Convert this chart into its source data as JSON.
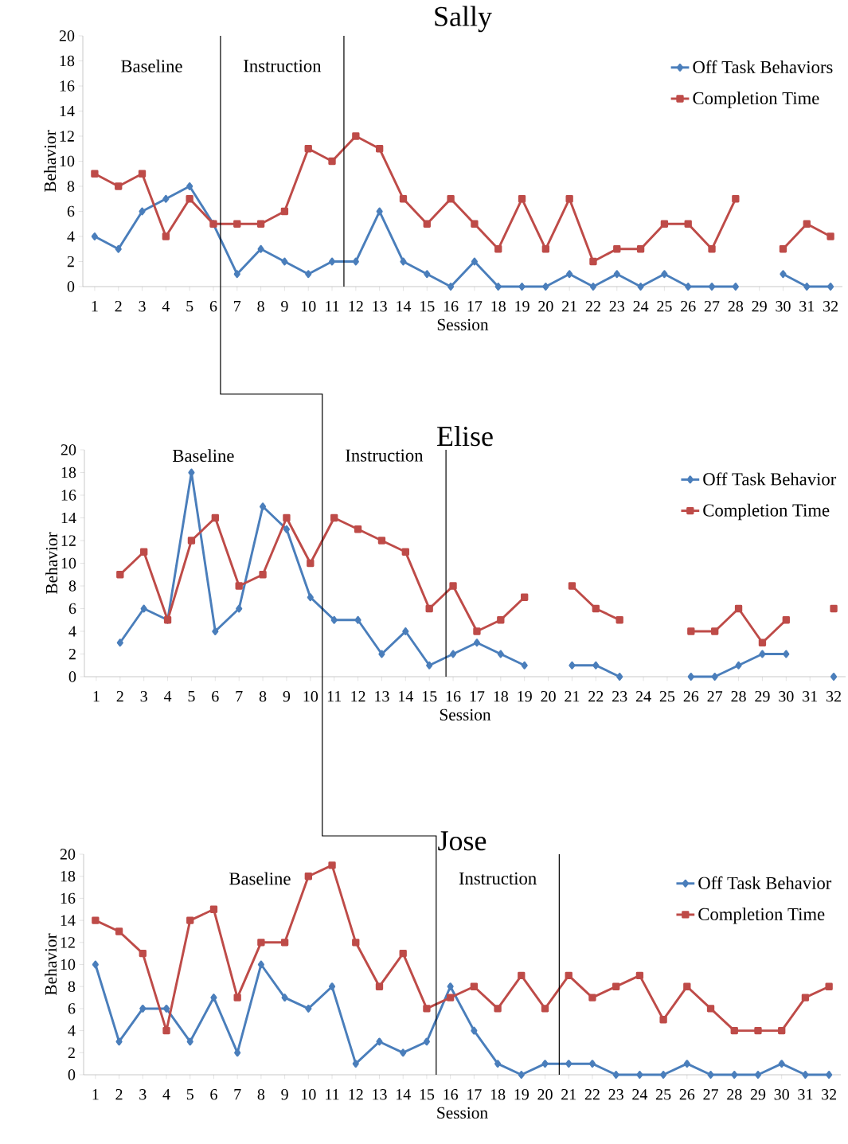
{
  "chart_data": [
    {
      "type": "line",
      "title": "Sally",
      "xlabel": "Session",
      "ylabel": "Behavior",
      "x": [
        1,
        2,
        3,
        4,
        5,
        6,
        7,
        8,
        9,
        10,
        11,
        12,
        13,
        14,
        15,
        16,
        17,
        18,
        19,
        20,
        21,
        22,
        23,
        24,
        25,
        26,
        27,
        28,
        29,
        30,
        31,
        32
      ],
      "xlim": [
        0.5,
        32.5
      ],
      "xticks": [
        1,
        2,
        3,
        4,
        5,
        6,
        7,
        8,
        9,
        10,
        11,
        12,
        13,
        14,
        15,
        16,
        17,
        18,
        19,
        20,
        21,
        22,
        23,
        24,
        25,
        26,
        27,
        28,
        29,
        30,
        31,
        32
      ],
      "ylim": [
        0,
        20
      ],
      "yticks": [
        0,
        2,
        4,
        6,
        8,
        10,
        12,
        14,
        16,
        18,
        20
      ],
      "legend": "top right",
      "series": [
        {
          "name": "Off Task Behaviors",
          "color": "#4a7ebb",
          "marker": "diamond",
          "values": [
            4,
            3,
            6,
            7,
            8,
            5,
            1,
            3,
            2,
            1,
            2,
            2,
            6,
            2,
            1,
            0,
            2,
            0,
            0,
            0,
            1,
            0,
            1,
            0,
            1,
            0,
            0,
            0,
            null,
            1,
            0,
            0
          ]
        },
        {
          "name": "Completion Time",
          "color": "#be4b48",
          "marker": "square",
          "values": [
            9,
            8,
            9,
            4,
            7,
            5,
            5,
            5,
            6,
            11,
            10,
            12,
            11,
            7,
            5,
            7,
            5,
            3,
            7,
            3,
            7,
            2,
            3,
            3,
            5,
            5,
            3,
            7,
            null,
            3,
            5,
            4
          ]
        }
      ],
      "ref_lines": [
        {
          "axis": "x",
          "value": 6.3,
          "color": "#000000"
        },
        {
          "axis": "x",
          "value": 11.5,
          "color": "#000000"
        }
      ],
      "annotations": [
        "Baseline",
        "Instruction"
      ]
    },
    {
      "type": "line",
      "title": "Elise",
      "xlabel": "Session",
      "ylabel": "Behavior",
      "xlim": [
        0.5,
        32.5
      ],
      "xticks": [
        1,
        2,
        3,
        4,
        5,
        6,
        7,
        8,
        9,
        10,
        11,
        12,
        13,
        14,
        15,
        16,
        17,
        18,
        19,
        20,
        21,
        22,
        23,
        24,
        25,
        26,
        27,
        28,
        29,
        30,
        31,
        32
      ],
      "ylim": [
        0,
        20
      ],
      "yticks": [
        0,
        2,
        4,
        6,
        8,
        10,
        12,
        14,
        16,
        18,
        20
      ],
      "legend": "top right",
      "series": [
        {
          "name": "Off Task Behavior",
          "color": "#4a7ebb",
          "marker": "diamond",
          "x": [
            2,
            3,
            4,
            5,
            6,
            7,
            8,
            9,
            10,
            11,
            12,
            13,
            14,
            15,
            16,
            17,
            18,
            19,
            20,
            21,
            22,
            23,
            24,
            25,
            26,
            27,
            28,
            29,
            30,
            31,
            32
          ],
          "values": [
            3,
            6,
            5,
            18,
            4,
            6,
            15,
            13,
            7,
            5,
            5,
            2,
            4,
            1,
            2,
            3,
            2,
            1,
            null,
            1,
            1,
            0,
            null,
            null,
            0,
            0,
            1,
            2,
            2,
            null,
            0
          ]
        },
        {
          "name": "Completion Time",
          "color": "#be4b48",
          "marker": "square",
          "x": [
            2,
            3,
            4,
            5,
            6,
            7,
            8,
            9,
            10,
            11,
            12,
            13,
            14,
            15,
            16,
            17,
            18,
            19,
            20,
            21,
            22,
            23,
            24,
            25,
            26,
            27,
            28,
            29,
            30,
            31,
            32
          ],
          "values": [
            9,
            11,
            5,
            12,
            14,
            8,
            9,
            14,
            10,
            14,
            13,
            12,
            11,
            6,
            8,
            4,
            5,
            7,
            null,
            8,
            6,
            5,
            null,
            null,
            4,
            4,
            6,
            3,
            5,
            null,
            6
          ]
        }
      ],
      "ref_lines": [
        {
          "axis": "x",
          "value": 10.5,
          "color": "#000000"
        },
        {
          "axis": "x",
          "value": 15.7,
          "color": "#000000"
        }
      ],
      "annotations": [
        "Baseline",
        "Instruction"
      ]
    },
    {
      "type": "line",
      "title": "Jose",
      "xlabel": "Session",
      "ylabel": "Behavior",
      "x": [
        1,
        2,
        3,
        4,
        5,
        6,
        7,
        8,
        9,
        10,
        11,
        12,
        13,
        14,
        15,
        16,
        17,
        18,
        19,
        20,
        21,
        22,
        23,
        24,
        25,
        26,
        27,
        28,
        29,
        30,
        31,
        32
      ],
      "xlim": [
        0.5,
        32.5
      ],
      "xticks": [
        1,
        2,
        3,
        4,
        5,
        6,
        7,
        8,
        9,
        10,
        11,
        12,
        13,
        14,
        15,
        16,
        17,
        18,
        19,
        20,
        21,
        22,
        23,
        24,
        25,
        26,
        27,
        28,
        29,
        30,
        31,
        32
      ],
      "ylim": [
        0,
        20
      ],
      "yticks": [
        0,
        2,
        4,
        6,
        8,
        10,
        12,
        14,
        16,
        18,
        20
      ],
      "legend": "top right",
      "series": [
        {
          "name": "Off Task Behavior",
          "color": "#4a7ebb",
          "marker": "diamond",
          "values": [
            10,
            3,
            6,
            6,
            3,
            7,
            2,
            10,
            7,
            6,
            8,
            1,
            3,
            2,
            3,
            8,
            4,
            1,
            0,
            1,
            1,
            1,
            0,
            0,
            0,
            1,
            0,
            0,
            0,
            1,
            0,
            0
          ]
        },
        {
          "name": "Completion Time",
          "color": "#be4b48",
          "marker": "square",
          "values": [
            14,
            13,
            11,
            4,
            14,
            15,
            7,
            12,
            12,
            18,
            19,
            12,
            8,
            11,
            6,
            7,
            8,
            6,
            9,
            6,
            9,
            7,
            8,
            9,
            5,
            8,
            6,
            4,
            4,
            4,
            7,
            8
          ]
        }
      ],
      "ref_lines": [
        {
          "axis": "x",
          "value": 15.4,
          "color": "#000000"
        },
        {
          "axis": "x",
          "value": 20.6,
          "color": "#000000"
        }
      ],
      "annotations": [
        "Baseline",
        "Instruction"
      ]
    }
  ]
}
